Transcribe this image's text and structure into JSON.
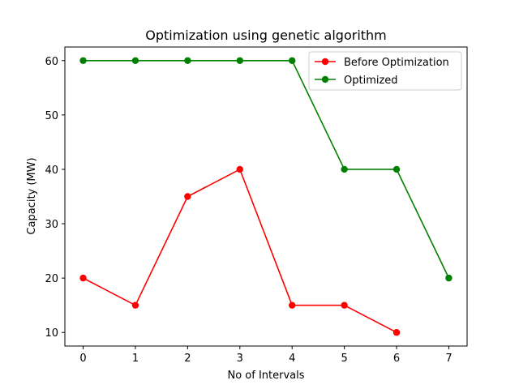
{
  "chart_data": {
    "type": "line",
    "title": "Optimization using genetic algorithm",
    "xlabel": "No of Intervals",
    "ylabel": "Capacity (MW)",
    "xlim": [
      -0.35,
      7.35
    ],
    "ylim": [
      7.5,
      62.5
    ],
    "xticks": [
      0,
      1,
      2,
      3,
      4,
      5,
      6,
      7
    ],
    "yticks": [
      10,
      20,
      30,
      40,
      50,
      60
    ],
    "grid": false,
    "legend_position": "top-right",
    "series": [
      {
        "name": "Before Optimization",
        "color": "#ff0000",
        "marker": "circle",
        "x": [
          0,
          1,
          2,
          3,
          4,
          5,
          6
        ],
        "y": [
          20,
          15,
          35,
          40,
          15,
          15,
          10
        ]
      },
      {
        "name": "Optimized",
        "color": "#008000",
        "marker": "circle",
        "x": [
          0,
          1,
          2,
          3,
          4,
          5,
          6,
          7
        ],
        "y": [
          60,
          60,
          60,
          60,
          60,
          40,
          40,
          20
        ]
      }
    ]
  }
}
